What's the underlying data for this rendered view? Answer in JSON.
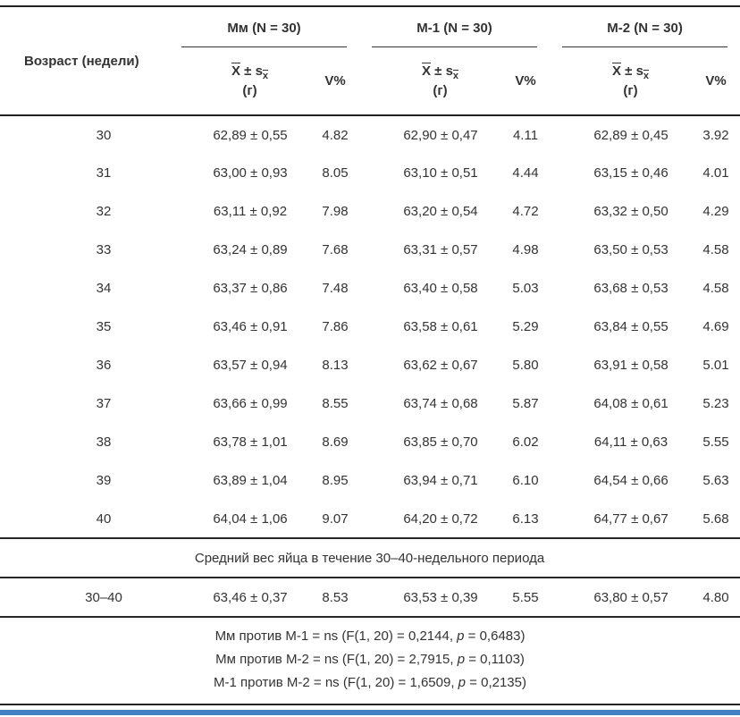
{
  "page": {
    "accent_color": "#4580c2"
  },
  "table": {
    "age_header": "Возраст (недели)",
    "groups": [
      {
        "label": "Мм (N = 30)"
      },
      {
        "label": "М-1 (N = 30)"
      },
      {
        "label": "М-2 (N = 30)"
      }
    ],
    "mean_head": {
      "x": "X",
      "pm": "±",
      "s": "s",
      "sub": "x",
      "unit": "(г)"
    },
    "v_label": "V%",
    "rows": [
      {
        "age": "30",
        "values": [
          "62,89 ± 0,55",
          "4.82",
          "62,90 ± 0,47",
          "4.11",
          "62,89 ± 0,45",
          "3.92"
        ]
      },
      {
        "age": "31",
        "values": [
          "63,00 ± 0,93",
          "8.05",
          "63,10 ± 0,51",
          "4.44",
          "63,15 ± 0,46",
          "4.01"
        ]
      },
      {
        "age": "32",
        "values": [
          "63,11 ± 0,92",
          "7.98",
          "63,20 ± 0,54",
          "4.72",
          "63,32 ± 0,50",
          "4.29"
        ]
      },
      {
        "age": "33",
        "values": [
          "63,24 ± 0,89",
          "7.68",
          "63,31 ± 0,57",
          "4.98",
          "63,50 ± 0,53",
          "4.58"
        ]
      },
      {
        "age": "34",
        "values": [
          "63,37 ± 0,86",
          "7.48",
          "63,40 ± 0,58",
          "5.03",
          "63,68 ± 0,53",
          "4.58"
        ]
      },
      {
        "age": "35",
        "values": [
          "63,46 ± 0,91",
          "7.86",
          "63,58 ± 0,61",
          "5.29",
          "63,84 ± 0,55",
          "4.69"
        ]
      },
      {
        "age": "36",
        "values": [
          "63,57 ± 0,94",
          "8.13",
          "63,62 ± 0,67",
          "5.80",
          "63,91 ± 0,58",
          "5.01"
        ]
      },
      {
        "age": "37",
        "values": [
          "63,66 ± 0,99",
          "8.55",
          "63,74 ± 0,68",
          "5.87",
          "64,08 ± 0,61",
          "5.23"
        ]
      },
      {
        "age": "38",
        "values": [
          "63,78 ± 1,01",
          "8.69",
          "63,85 ± 0,70",
          "6.02",
          "64,11 ± 0,63",
          "5.55"
        ]
      },
      {
        "age": "39",
        "values": [
          "63,89 ± 1,04",
          "8.95",
          "63,94 ± 0,71",
          "6.10",
          "64,54 ± 0,66",
          "5.63"
        ]
      },
      {
        "age": "40",
        "values": [
          "64,04 ± 1,06",
          "9.07",
          "64,20 ± 0,72",
          "6.13",
          "64,77 ± 0,67",
          "5.68"
        ]
      }
    ],
    "section_label": "Средний вес яйца в течение 30–40-недельного периода",
    "summary_row": {
      "age": "30–40",
      "values": [
        "63,46 ± 0,37",
        "8.53",
        "63,53 ± 0,39",
        "5.55",
        "63,80 ± 0,57",
        "4.80"
      ]
    },
    "footnotes": [
      {
        "pre": "Мм против М-1 = ns (F(1, 20) = 0,2144, ",
        "p": "p",
        "post": " = 0,6483)"
      },
      {
        "pre": "Мм против М-2 = ns (F(1, 20) = 2,7915, ",
        "p": "p",
        "post": " = 0,1103)"
      },
      {
        "pre": "М-1 против М-2 = ns (F(1, 20) = 1,6509, ",
        "p": "p",
        "post": " = 0,2135)"
      }
    ]
  }
}
